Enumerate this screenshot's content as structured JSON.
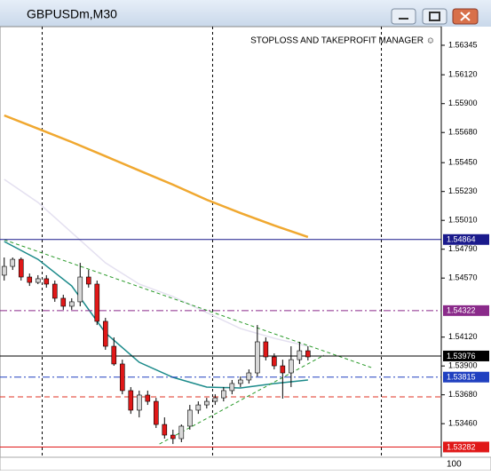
{
  "window": {
    "title": "GBPUSDm,M30"
  },
  "chart_data": {
    "type": "candlestick",
    "annotation": "STOPLOSS AND TAKEPROFIT MANAGER ☺",
    "indicator_scale_label": "100",
    "xlim": [
      -0.5,
      51.8
    ],
    "ylim": [
      1.53204,
      1.56487
    ],
    "yticks": [
      {
        "value": 1.56345,
        "label": "1.56345"
      },
      {
        "value": 1.5612,
        "label": "1.56120"
      },
      {
        "value": 1.559,
        "label": "1.55900"
      },
      {
        "value": 1.5568,
        "label": "1.55680"
      },
      {
        "value": 1.5545,
        "label": "1.55450"
      },
      {
        "value": 1.5523,
        "label": "1.55230"
      },
      {
        "value": 1.5501,
        "label": "1.55010"
      },
      {
        "value": 1.5479,
        "label": "1.54790"
      },
      {
        "value": 1.5457,
        "label": "1.54570"
      },
      {
        "value": 1.5412,
        "label": "1.54120"
      },
      {
        "value": 1.539,
        "label": "1.53900"
      },
      {
        "value": 1.5368,
        "label": "1.53680"
      },
      {
        "value": 1.5346,
        "label": "1.53460"
      }
    ],
    "up_color": "#d8d8d8",
    "down_color": "#e01818",
    "open": [
      1.54592,
      1.54659,
      1.54713,
      1.54578,
      1.54537,
      1.54565,
      1.54524,
      1.54416,
      1.54355,
      1.54389,
      1.54578,
      1.54524,
      1.5424,
      1.5405,
      1.53915,
      1.53712,
      1.53563,
      1.53678,
      1.5363,
      1.53454,
      1.53373,
      1.53346,
      1.53441,
      1.53563,
      1.53603,
      1.5363,
      1.53657,
      1.53712,
      1.53766,
      1.53793,
      1.53847,
      1.54084,
      1.53969,
      1.53901,
      1.53847,
      1.53948,
      1.54016
    ],
    "high": [
      1.54727,
      1.54727,
      1.54727,
      1.54605,
      1.54592,
      1.54592,
      1.54551,
      1.54443,
      1.54416,
      1.54686,
      1.54632,
      1.54551,
      1.54267,
      1.54118,
      1.53948,
      1.53739,
      1.53712,
      1.53712,
      1.53657,
      1.53508,
      1.53414,
      1.53454,
      1.53603,
      1.5363,
      1.53657,
      1.53684,
      1.53739,
      1.53793,
      1.5382,
      1.53874,
      1.54212,
      1.54118,
      1.53996,
      1.53948,
      1.5405,
      1.54084,
      1.5405
    ],
    "low": [
      1.54551,
      1.54632,
      1.54551,
      1.5451,
      1.54524,
      1.54497,
      1.54389,
      1.54328,
      1.54328,
      1.54355,
      1.54497,
      1.54212,
      1.54023,
      1.53901,
      1.53684,
      1.53535,
      1.53508,
      1.53603,
      1.53427,
      1.53346,
      1.53305,
      1.53319,
      1.53414,
      1.53535,
      1.53576,
      1.53603,
      1.5363,
      1.53684,
      1.53739,
      1.53766,
      1.5382,
      1.53942,
      1.53874,
      1.53651,
      1.53739,
      1.53915,
      1.53942
    ],
    "close": [
      1.54659,
      1.54713,
      1.54578,
      1.54537,
      1.54565,
      1.54524,
      1.54416,
      1.54355,
      1.54389,
      1.54578,
      1.54524,
      1.5424,
      1.5405,
      1.53915,
      1.53712,
      1.53563,
      1.53678,
      1.5363,
      1.53454,
      1.53373,
      1.53346,
      1.53441,
      1.53563,
      1.53603,
      1.5363,
      1.53657,
      1.53712,
      1.53766,
      1.53793,
      1.53847,
      1.54084,
      1.53969,
      1.53901,
      1.53847,
      1.53948,
      1.54016,
      1.53969
    ],
    "lines": [
      {
        "color": "#f0a830",
        "x": [
          0,
          4,
          8,
          12,
          16,
          20,
          24,
          28,
          32,
          36
        ],
        "values": [
          1.5581,
          1.55709,
          1.55607,
          1.55499,
          1.5539,
          1.55282,
          1.55167,
          1.55066,
          1.54971,
          1.54883
        ]
      },
      {
        "color": "#e4e0f0",
        "x": [
          0,
          4,
          8,
          12,
          16,
          20,
          24,
          28,
          32,
          36
        ],
        "values": [
          1.55323,
          1.55147,
          1.54917,
          1.54686,
          1.54524,
          1.54429,
          1.54307,
          1.54185,
          1.54111,
          1.5405
        ]
      },
      {
        "color": "#1a8a8a",
        "x": [
          0,
          4,
          8,
          12,
          16,
          20,
          24,
          28,
          32,
          36
        ],
        "values": [
          1.54849,
          1.54713,
          1.5451,
          1.54152,
          1.53928,
          1.53813,
          1.53739,
          1.53732,
          1.53766,
          1.53793
        ]
      }
    ],
    "trendlines": [
      {
        "color": "#2a9a2a",
        "x": [
          0,
          43.5
        ],
        "values": [
          1.54862,
          1.53888
        ]
      },
      {
        "color": "#2a9a2a",
        "x": [
          18.4,
          37.9
        ],
        "values": [
          1.53305,
          1.53982
        ]
      }
    ],
    "separators": [
      4.5,
      24.7,
      44.7
    ],
    "levels": [
      {
        "value": 1.54864,
        "color": "#1a1a8c",
        "dash": "none",
        "show_label": true
      },
      {
        "value": 1.54322,
        "color": "#8a2a8a",
        "dash": "8 3 2 3",
        "show_label": true
      },
      {
        "value": 1.53976,
        "color": "#000000",
        "dash": "none",
        "show_label": true
      },
      {
        "value": 1.53815,
        "color": "#2040c0",
        "dash": "8 3 2 3",
        "show_label": true
      },
      {
        "value": 1.53664,
        "color": "#e03020",
        "dash": "6 4",
        "show_label": false
      },
      {
        "value": 1.53282,
        "color": "#e01818",
        "dash": "none",
        "show_label": true
      }
    ]
  }
}
